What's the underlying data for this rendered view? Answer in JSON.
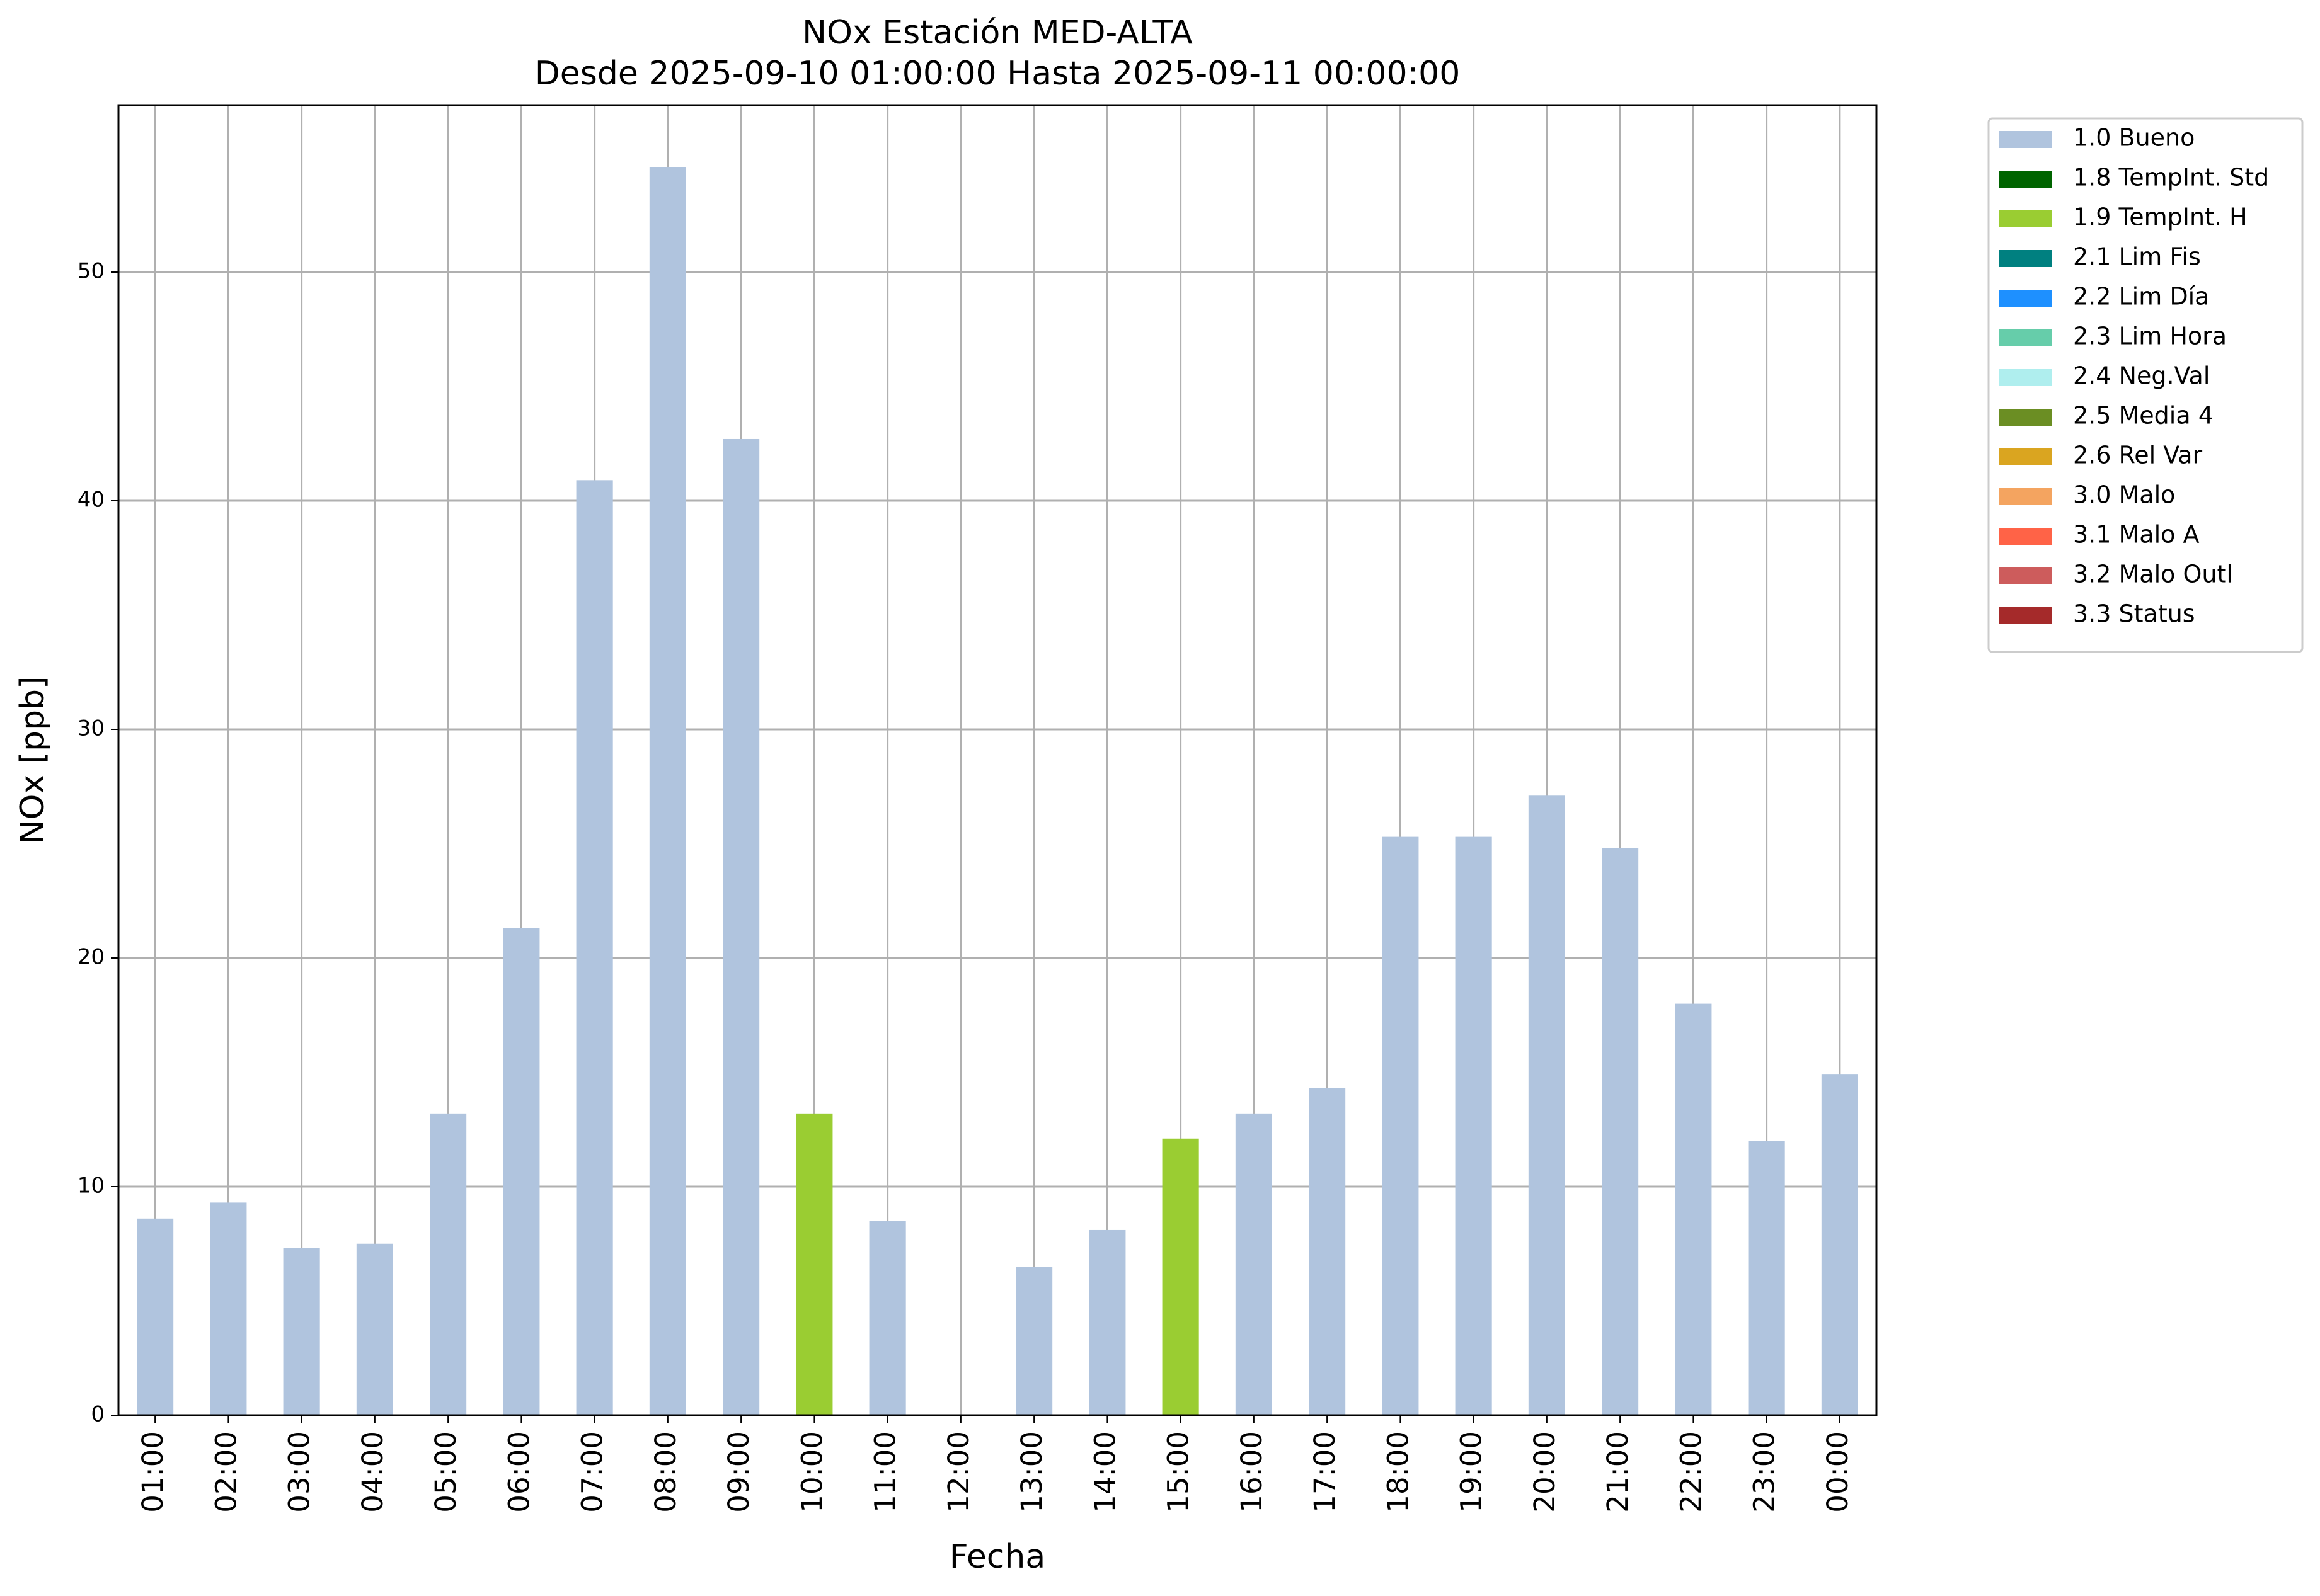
{
  "chart_data": {
    "type": "bar",
    "stacked": true,
    "title": "NOx Estación MED-ALTA",
    "subtitle": "Desde 2025-09-10 01:00:00 Hasta 2025-09-11 00:00:00",
    "x_label": "Fecha",
    "y_label": "NOx [ppb]",
    "categories": [
      "01:00",
      "02:00",
      "03:00",
      "04:00",
      "05:00",
      "06:00",
      "07:00",
      "08:00",
      "09:00",
      "10:00",
      "11:00",
      "12:00",
      "13:00",
      "14:00",
      "15:00",
      "16:00",
      "17:00",
      "18:00",
      "19:00",
      "20:00",
      "21:00",
      "22:00",
      "23:00",
      "00:00"
    ],
    "series": [
      {
        "name": "1.0 Bueno",
        "color": "#b0c4de",
        "values": [
          8.6,
          9.3,
          7.3,
          7.5,
          13.2,
          21.3,
          40.9,
          54.6,
          42.7,
          null,
          8.5,
          null,
          6.5,
          8.1,
          null,
          13.2,
          14.3,
          25.3,
          25.3,
          27.1,
          24.8,
          18.0,
          12.0,
          14.9
        ]
      },
      {
        "name": "1.8 TempInt. Std",
        "color": "#006400",
        "values": [
          null,
          null,
          null,
          null,
          null,
          null,
          null,
          null,
          null,
          null,
          null,
          null,
          null,
          null,
          null,
          null,
          null,
          null,
          null,
          null,
          null,
          null,
          null,
          null
        ]
      },
      {
        "name": "1.9 TempInt. H",
        "color": "#9acd32",
        "values": [
          null,
          null,
          null,
          null,
          null,
          null,
          null,
          null,
          null,
          13.2,
          null,
          null,
          null,
          null,
          12.1,
          null,
          null,
          null,
          null,
          null,
          null,
          null,
          null,
          null
        ]
      },
      {
        "name": "2.1 Lim Fis",
        "color": "#008080",
        "values": [
          null,
          null,
          null,
          null,
          null,
          null,
          null,
          null,
          null,
          null,
          null,
          null,
          null,
          null,
          null,
          null,
          null,
          null,
          null,
          null,
          null,
          null,
          null,
          null
        ]
      },
      {
        "name": "2.2 Lim Día",
        "color": "#1e90ff",
        "values": [
          null,
          null,
          null,
          null,
          null,
          null,
          null,
          null,
          null,
          null,
          null,
          null,
          null,
          null,
          null,
          null,
          null,
          null,
          null,
          null,
          null,
          null,
          null,
          null
        ]
      },
      {
        "name": "2.3 Lim Hora",
        "color": "#66cdaa",
        "values": [
          null,
          null,
          null,
          null,
          null,
          null,
          null,
          null,
          null,
          null,
          null,
          null,
          null,
          null,
          null,
          null,
          null,
          null,
          null,
          null,
          null,
          null,
          null,
          null
        ]
      },
      {
        "name": "2.4 Neg.Val",
        "color": "#afeeee",
        "values": [
          null,
          null,
          null,
          null,
          null,
          null,
          null,
          null,
          null,
          null,
          null,
          null,
          null,
          null,
          null,
          null,
          null,
          null,
          null,
          null,
          null,
          null,
          null,
          null
        ]
      },
      {
        "name": "2.5 Media 4",
        "color": "#6b8e23",
        "values": [
          null,
          null,
          null,
          null,
          null,
          null,
          null,
          null,
          null,
          null,
          null,
          null,
          null,
          null,
          null,
          null,
          null,
          null,
          null,
          null,
          null,
          null,
          null,
          null
        ]
      },
      {
        "name": "2.6 Rel Var",
        "color": "#daa520",
        "values": [
          null,
          null,
          null,
          null,
          null,
          null,
          null,
          null,
          null,
          null,
          null,
          null,
          null,
          null,
          null,
          null,
          null,
          null,
          null,
          null,
          null,
          null,
          null,
          null
        ]
      },
      {
        "name": "3.0 Malo",
        "color": "#f4a460",
        "values": [
          null,
          null,
          null,
          null,
          null,
          null,
          null,
          null,
          null,
          null,
          null,
          null,
          null,
          null,
          null,
          null,
          null,
          null,
          null,
          null,
          null,
          null,
          null,
          null
        ]
      },
      {
        "name": "3.1 Malo A",
        "color": "#ff6347",
        "values": [
          null,
          null,
          null,
          null,
          null,
          null,
          null,
          null,
          null,
          null,
          null,
          null,
          null,
          null,
          null,
          null,
          null,
          null,
          null,
          null,
          null,
          null,
          null,
          null
        ]
      },
      {
        "name": "3.2 Malo Outl",
        "color": "#cd5c5c",
        "values": [
          null,
          null,
          null,
          null,
          null,
          null,
          null,
          null,
          null,
          null,
          null,
          null,
          null,
          null,
          null,
          null,
          null,
          null,
          null,
          null,
          null,
          null,
          null,
          null
        ]
      },
      {
        "name": "3.3 Status",
        "color": "#a52a2a",
        "values": [
          null,
          null,
          null,
          null,
          null,
          null,
          null,
          null,
          null,
          null,
          null,
          null,
          null,
          null,
          null,
          null,
          null,
          null,
          null,
          null,
          null,
          null,
          null,
          null
        ]
      }
    ],
    "ylim": [
      0,
      57.3
    ],
    "yticks": [
      0,
      10,
      20,
      30,
      40,
      50
    ],
    "grid": true,
    "legend": "outside-right"
  }
}
